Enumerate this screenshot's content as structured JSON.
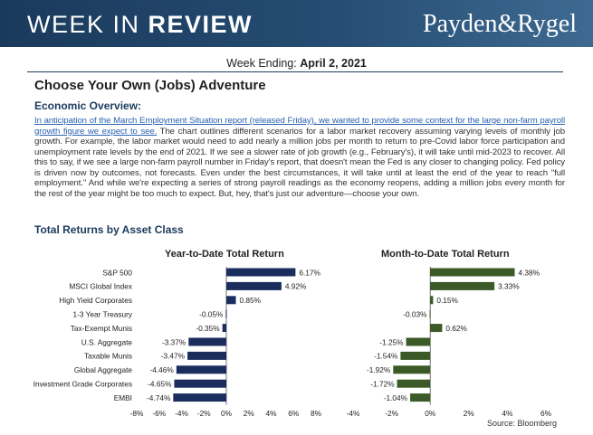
{
  "header": {
    "title_light": "WEEK IN ",
    "title_bold": "REVIEW",
    "logo": "Payden&Rygel"
  },
  "week_ending": {
    "label": "Week Ending:",
    "date": "April 2, 2021"
  },
  "section_title": "Choose Your Own (Jobs) Adventure",
  "overview": {
    "heading": "Economic Overview:",
    "link_text": "In anticipation of the March Employment Situation report (released Friday), we wanted to provide some context for the large non-farm payroll growth figure we expect to see.",
    "body": " The chart outlines different scenarios for a labor market recovery assuming varying levels of monthly job growth. For example, the labor market would need to add nearly a million jobs per month to return to pre-Covid labor force participation and unemployment rate levels by the end of 2021. If we see a slower rate of job growth (e.g., February's), it will take until mid-2023 to recover. All this to say, if we see a large non-farm payroll number in Friday's report, that doesn't mean the Fed is any closer to changing policy. Fed policy is driven now by outcomes, not forecasts. Even under the best circumstances, it will take until at least the end of the year to reach \"full employment.\" And while we're expecting a series of strong payroll readings as the economy reopens, adding a million jobs every month for the rest of the year might be too much to expect. But, hey, that's just our adventure—choose your own."
  },
  "returns_heading": "Total Returns by Asset Class",
  "source": "Source: Bloomberg",
  "colors": {
    "ytd_bar": "#1a2d5c",
    "mtd_bar": "#3b5a27",
    "heading_blue": "#1a3a5c"
  },
  "chart_data": [
    {
      "type": "bar",
      "orientation": "horizontal",
      "title": "Year-to-Date Total Return",
      "categories": [
        "S&P 500",
        "MSCI Global Index",
        "High Yield Corporates",
        "1-3 Year Treasury",
        "Tax-Exempt Munis",
        "U.S. Aggregate",
        "Taxable Munis",
        "Global Aggregate",
        "Investment Grade Corporates",
        "EMBI"
      ],
      "values": [
        6.17,
        4.92,
        0.85,
        -0.05,
        -0.35,
        -3.37,
        -3.47,
        -4.46,
        -4.65,
        -4.74
      ],
      "value_labels": [
        "6.17%",
        "4.92%",
        "0.85%",
        "-0.05%",
        "-0.35%",
        "-3.37%",
        "-3.47%",
        "-4.46%",
        "-4.65%",
        "-4.74%"
      ],
      "xlim": [
        -8,
        8
      ],
      "xticks": [
        -8,
        -6,
        -4,
        -2,
        0,
        2,
        4,
        6,
        8
      ],
      "xtick_labels": [
        "-8%",
        "-6%",
        "-4%",
        "-2%",
        "0%",
        "2%",
        "4%",
        "6%",
        "8%"
      ],
      "xlabel": "",
      "ylabel": ""
    },
    {
      "type": "bar",
      "orientation": "horizontal",
      "title": "Month-to-Date Total Return",
      "categories": [
        "S&P 500",
        "MSCI Global Index",
        "High Yield Corporates",
        "1-3 Year Treasury",
        "Tax-Exempt Munis",
        "U.S. Aggregate",
        "Taxable Munis",
        "Global Aggregate",
        "Investment Grade Corporates",
        "EMBI"
      ],
      "values": [
        4.38,
        3.33,
        0.15,
        -0.03,
        0.62,
        -1.25,
        -1.54,
        -1.92,
        -1.72,
        -1.04
      ],
      "value_labels": [
        "4.38%",
        "3.33%",
        "0.15%",
        "-0.03%",
        "0.62%",
        "-1.25%",
        "-1.54%",
        "-1.92%",
        "-1.72%",
        "-1.04%"
      ],
      "xlim": [
        -4,
        6
      ],
      "xticks": [
        -4,
        -2,
        0,
        2,
        4,
        6
      ],
      "xtick_labels": [
        "-4%",
        "-2%",
        "0%",
        "2%",
        "4%",
        "6%"
      ],
      "xlabel": "",
      "ylabel": ""
    }
  ]
}
